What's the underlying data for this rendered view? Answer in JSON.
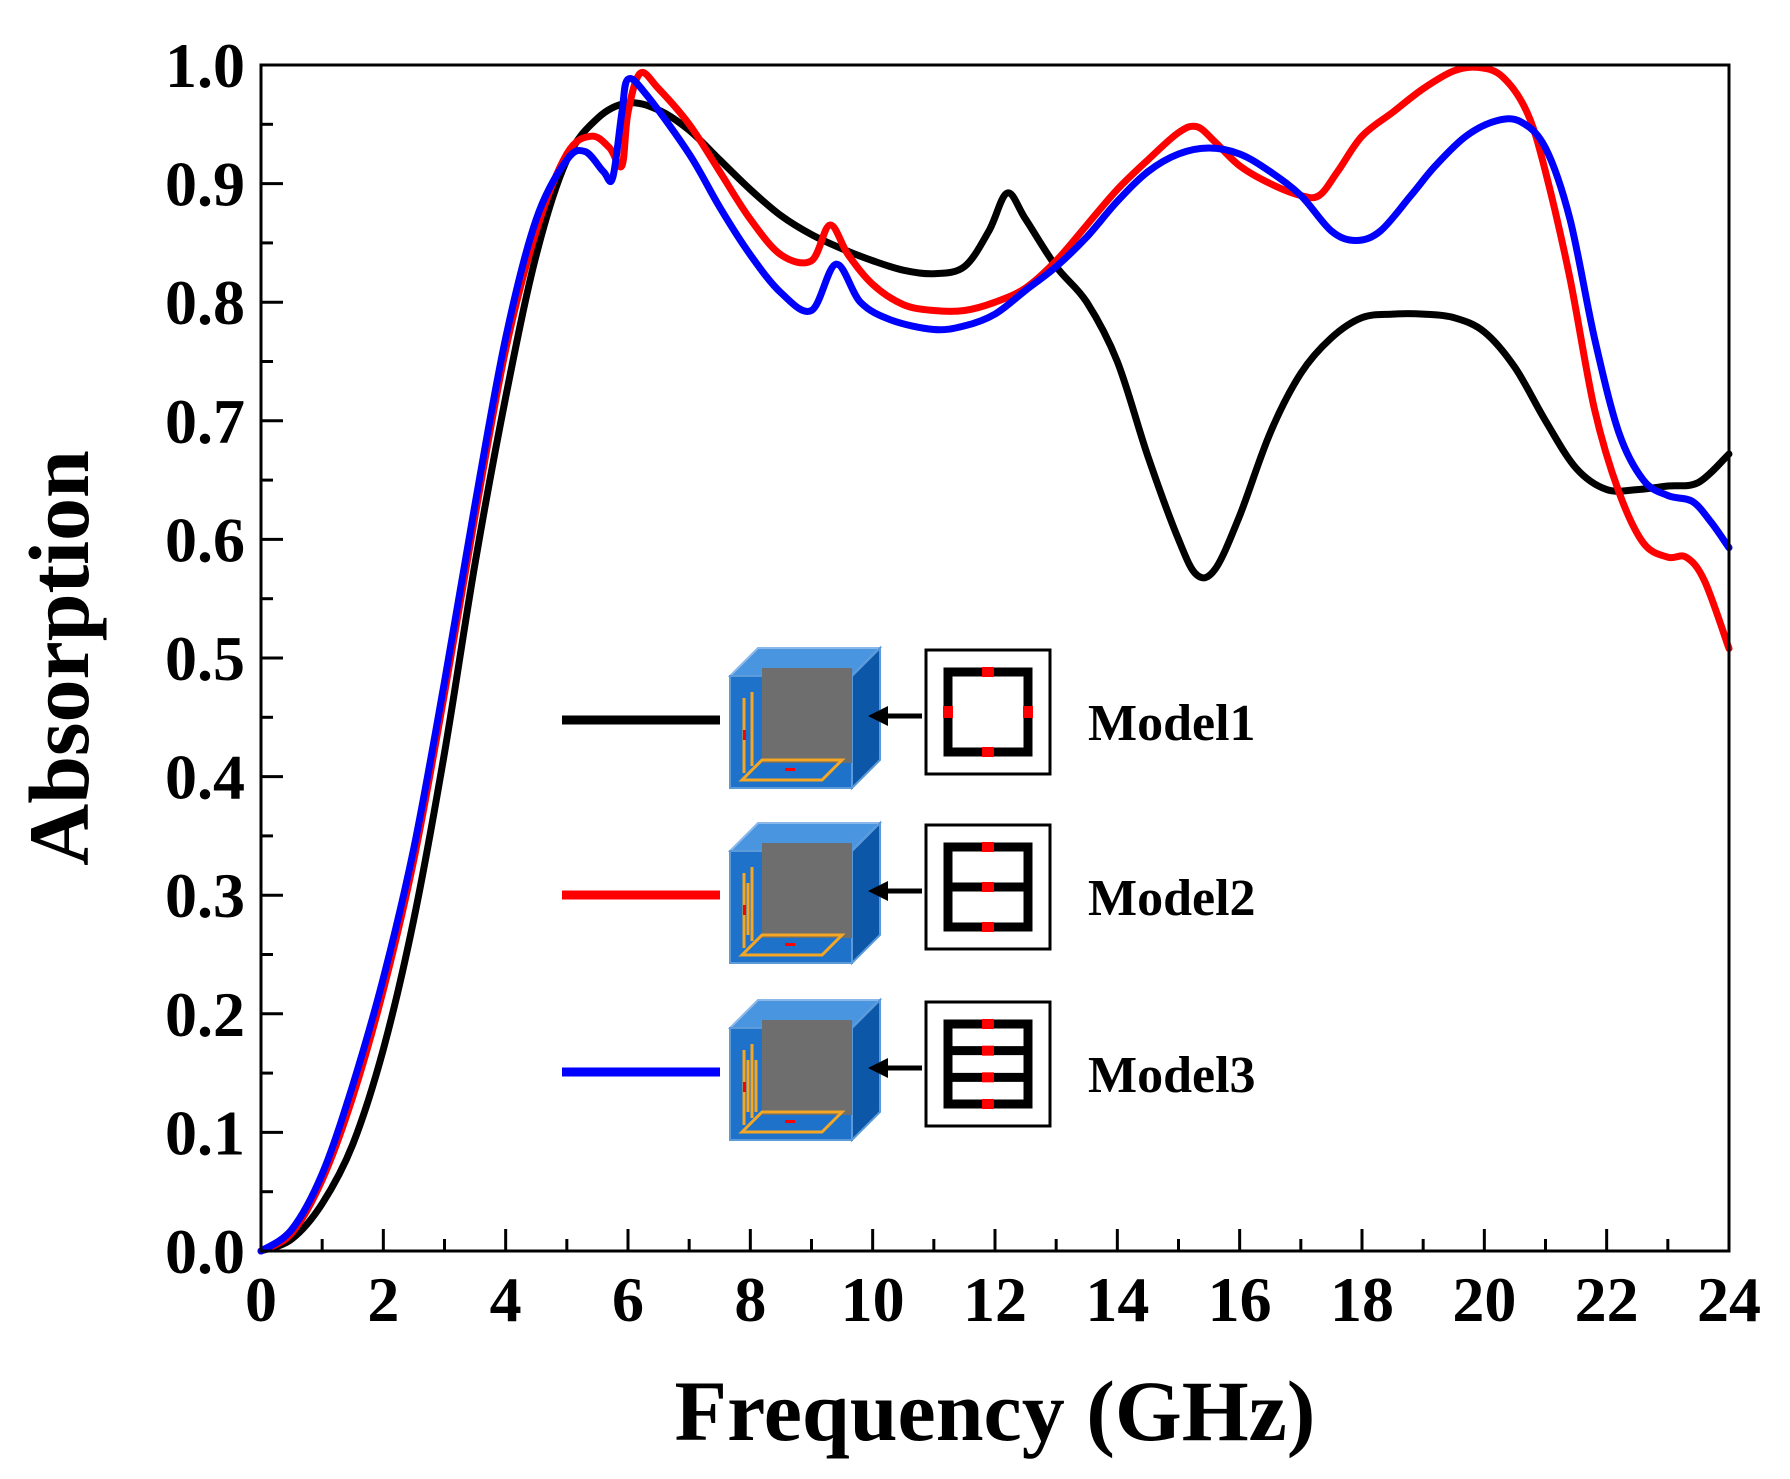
{
  "chart_data": {
    "type": "line",
    "xlabel": "Frequency (GHz)",
    "ylabel": "Absorption",
    "xlim": [
      0,
      24
    ],
    "ylim": [
      0.0,
      1.0
    ],
    "xticks": [
      0,
      2,
      4,
      6,
      8,
      10,
      12,
      14,
      16,
      18,
      20,
      22,
      24
    ],
    "yticks": [
      0.0,
      0.1,
      0.2,
      0.3,
      0.4,
      0.5,
      0.6,
      0.7,
      0.8,
      0.9,
      1.0
    ],
    "xtick_labels": [
      "0",
      "2",
      "4",
      "6",
      "8",
      "10",
      "12",
      "14",
      "16",
      "18",
      "20",
      "22",
      "24"
    ],
    "ytick_labels": [
      "0.0",
      "0.1",
      "0.2",
      "0.3",
      "0.4",
      "0.5",
      "0.6",
      "0.7",
      "0.8",
      "0.9",
      "1.0"
    ],
    "grid": false,
    "legend_position": "center",
    "series": [
      {
        "name": "Model1",
        "color": "#000000",
        "points": [
          [
            0,
            0
          ],
          [
            0.5,
            0.01
          ],
          [
            1,
            0.04
          ],
          [
            1.5,
            0.09
          ],
          [
            2,
            0.17
          ],
          [
            2.5,
            0.28
          ],
          [
            3,
            0.42
          ],
          [
            3.5,
            0.58
          ],
          [
            4,
            0.72
          ],
          [
            4.5,
            0.84
          ],
          [
            5,
            0.92
          ],
          [
            5.5,
            0.955
          ],
          [
            6,
            0.968
          ],
          [
            6.5,
            0.962
          ],
          [
            7,
            0.945
          ],
          [
            7.5,
            0.92
          ],
          [
            8,
            0.895
          ],
          [
            8.5,
            0.873
          ],
          [
            9,
            0.857
          ],
          [
            9.5,
            0.845
          ],
          [
            10,
            0.835
          ],
          [
            10.5,
            0.827
          ],
          [
            11,
            0.824
          ],
          [
            11.5,
            0.83
          ],
          [
            11.9,
            0.86
          ],
          [
            12.2,
            0.892
          ],
          [
            12.5,
            0.87
          ],
          [
            13,
            0.83
          ],
          [
            13.5,
            0.8
          ],
          [
            14,
            0.75
          ],
          [
            14.5,
            0.67
          ],
          [
            15,
            0.6
          ],
          [
            15.3,
            0.57
          ],
          [
            15.6,
            0.575
          ],
          [
            16,
            0.62
          ],
          [
            16.5,
            0.69
          ],
          [
            17,
            0.74
          ],
          [
            17.5,
            0.77
          ],
          [
            18,
            0.787
          ],
          [
            18.5,
            0.79
          ],
          [
            19,
            0.79
          ],
          [
            19.5,
            0.787
          ],
          [
            20,
            0.775
          ],
          [
            20.5,
            0.745
          ],
          [
            21,
            0.7
          ],
          [
            21.5,
            0.66
          ],
          [
            22,
            0.642
          ],
          [
            22.5,
            0.642
          ],
          [
            23,
            0.645
          ],
          [
            23.5,
            0.648
          ],
          [
            24,
            0.672
          ]
        ]
      },
      {
        "name": "Model2",
        "color": "#ff0000",
        "points": [
          [
            0,
            0
          ],
          [
            0.5,
            0.015
          ],
          [
            1,
            0.06
          ],
          [
            1.5,
            0.13
          ],
          [
            2,
            0.22
          ],
          [
            2.5,
            0.33
          ],
          [
            3,
            0.47
          ],
          [
            3.5,
            0.62
          ],
          [
            4,
            0.76
          ],
          [
            4.5,
            0.86
          ],
          [
            5,
            0.925
          ],
          [
            5.4,
            0.94
          ],
          [
            5.7,
            0.93
          ],
          [
            5.9,
            0.915
          ],
          [
            6,
            0.96
          ],
          [
            6.2,
            0.993
          ],
          [
            6.5,
            0.98
          ],
          [
            7,
            0.95
          ],
          [
            7.5,
            0.91
          ],
          [
            8,
            0.87
          ],
          [
            8.5,
            0.84
          ],
          [
            9,
            0.835
          ],
          [
            9.3,
            0.865
          ],
          [
            9.6,
            0.84
          ],
          [
            10,
            0.815
          ],
          [
            10.5,
            0.798
          ],
          [
            11,
            0.793
          ],
          [
            11.5,
            0.793
          ],
          [
            12,
            0.8
          ],
          [
            12.5,
            0.812
          ],
          [
            13,
            0.835
          ],
          [
            13.5,
            0.865
          ],
          [
            14,
            0.895
          ],
          [
            14.5,
            0.92
          ],
          [
            15,
            0.943
          ],
          [
            15.3,
            0.948
          ],
          [
            15.6,
            0.935
          ],
          [
            16,
            0.915
          ],
          [
            16.5,
            0.9
          ],
          [
            17,
            0.89
          ],
          [
            17.3,
            0.89
          ],
          [
            17.6,
            0.91
          ],
          [
            18,
            0.94
          ],
          [
            18.5,
            0.96
          ],
          [
            19,
            0.98
          ],
          [
            19.5,
            0.995
          ],
          [
            19.9,
            0.998
          ],
          [
            20.3,
            0.99
          ],
          [
            20.7,
            0.96
          ],
          [
            21,
            0.91
          ],
          [
            21.4,
            0.82
          ],
          [
            21.8,
            0.71
          ],
          [
            22.2,
            0.64
          ],
          [
            22.6,
            0.597
          ],
          [
            23,
            0.585
          ],
          [
            23.3,
            0.585
          ],
          [
            23.6,
            0.565
          ],
          [
            24,
            0.508
          ]
        ]
      },
      {
        "name": "Model3",
        "color": "#0000ff",
        "points": [
          [
            0,
            0
          ],
          [
            0.5,
            0.018
          ],
          [
            1,
            0.065
          ],
          [
            1.5,
            0.14
          ],
          [
            2,
            0.23
          ],
          [
            2.5,
            0.34
          ],
          [
            3,
            0.48
          ],
          [
            3.5,
            0.63
          ],
          [
            4,
            0.77
          ],
          [
            4.5,
            0.87
          ],
          [
            5,
            0.92
          ],
          [
            5.3,
            0.927
          ],
          [
            5.6,
            0.91
          ],
          [
            5.75,
            0.905
          ],
          [
            5.9,
            0.96
          ],
          [
            6.0,
            0.988
          ],
          [
            6.3,
            0.975
          ],
          [
            7,
            0.925
          ],
          [
            7.5,
            0.88
          ],
          [
            8,
            0.84
          ],
          [
            8.5,
            0.808
          ],
          [
            9,
            0.793
          ],
          [
            9.4,
            0.832
          ],
          [
            9.8,
            0.8
          ],
          [
            10.3,
            0.785
          ],
          [
            11,
            0.777
          ],
          [
            11.5,
            0.78
          ],
          [
            12,
            0.79
          ],
          [
            12.5,
            0.81
          ],
          [
            13,
            0.83
          ],
          [
            13.5,
            0.855
          ],
          [
            14,
            0.885
          ],
          [
            14.5,
            0.91
          ],
          [
            15,
            0.925
          ],
          [
            15.5,
            0.93
          ],
          [
            16,
            0.925
          ],
          [
            16.5,
            0.91
          ],
          [
            17,
            0.89
          ],
          [
            17.5,
            0.86
          ],
          [
            17.9,
            0.852
          ],
          [
            18.3,
            0.86
          ],
          [
            18.8,
            0.89
          ],
          [
            19.2,
            0.915
          ],
          [
            19.7,
            0.94
          ],
          [
            20.2,
            0.953
          ],
          [
            20.6,
            0.952
          ],
          [
            21,
            0.93
          ],
          [
            21.4,
            0.87
          ],
          [
            21.8,
            0.77
          ],
          [
            22.2,
            0.69
          ],
          [
            22.6,
            0.65
          ],
          [
            23,
            0.637
          ],
          [
            23.4,
            0.632
          ],
          [
            23.7,
            0.615
          ],
          [
            24,
            0.593
          ]
        ]
      }
    ]
  },
  "legend": {
    "entries": [
      {
        "label": "Model1",
        "color": "#000000",
        "bars": 0
      },
      {
        "label": "Model2",
        "color": "#ff0000",
        "bars": 1
      },
      {
        "label": "Model3",
        "color": "#0000ff",
        "bars": 2
      }
    ]
  },
  "colors": {
    "cube_blue": "#1f72c9",
    "cube_dark": "#0d57a8",
    "cube_grey": "#6e6e6e",
    "strip_orange": "#f5a623",
    "gap_red": "#ff0000"
  }
}
